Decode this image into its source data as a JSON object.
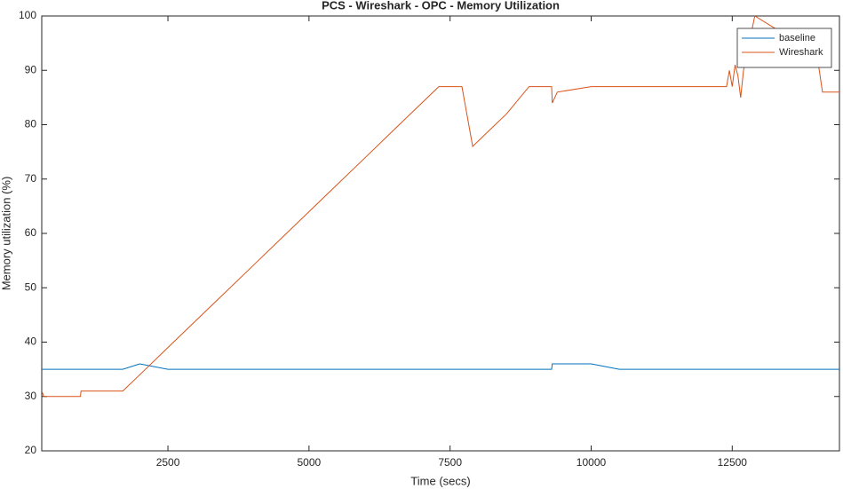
{
  "chart_data": {
    "type": "line",
    "title": "PCS - Wireshark - OPC - Memory Utilization",
    "x_label": "Time (secs)",
    "y_label": "Memory utilization (%)",
    "x": [
      264,
      300,
      950,
      960,
      1700,
      2000,
      2500,
      3000,
      3500,
      4000,
      4500,
      5000,
      5500,
      6000,
      6500,
      7000,
      7300,
      7700,
      7710,
      7900,
      8200,
      8500,
      8900,
      9300,
      9310,
      9400,
      10000,
      10500,
      11000,
      11500,
      12000,
      12400,
      12450,
      12500,
      12550,
      12600,
      12650,
      12700,
      12900,
      14000,
      14100,
      14400
    ],
    "series": [
      {
        "name": "baseline",
        "color": "#0072BD",
        "values": [
          35,
          35,
          35,
          35,
          35,
          36,
          35,
          35,
          35,
          35,
          35,
          35,
          35,
          35,
          35,
          35,
          35,
          35,
          35,
          35,
          35,
          35,
          35,
          35,
          36,
          36,
          36,
          35,
          35,
          35,
          35,
          35,
          35,
          35,
          35,
          35,
          35,
          35,
          35,
          35,
          35,
          35
        ]
      },
      {
        "name": "Wireshark",
        "color": "#D95319",
        "values": [
          31,
          30,
          30,
          31,
          31,
          34,
          39,
          44,
          49,
          54,
          59,
          64,
          69,
          74,
          79,
          84,
          87,
          87,
          87,
          76,
          79,
          82,
          87,
          87,
          84,
          86,
          87,
          87,
          87,
          87,
          87,
          87,
          90,
          87,
          91,
          89,
          85,
          90,
          100,
          93,
          86,
          86
        ]
      }
    ],
    "xlim": [
      264,
      14400
    ],
    "ylim": [
      20,
      100
    ],
    "xticks": [
      2500,
      5000,
      7500,
      10000,
      12500
    ],
    "yticks": [
      20,
      30,
      40,
      50,
      60,
      70,
      80,
      90,
      100
    ],
    "grid": false,
    "legend": "top-right"
  }
}
